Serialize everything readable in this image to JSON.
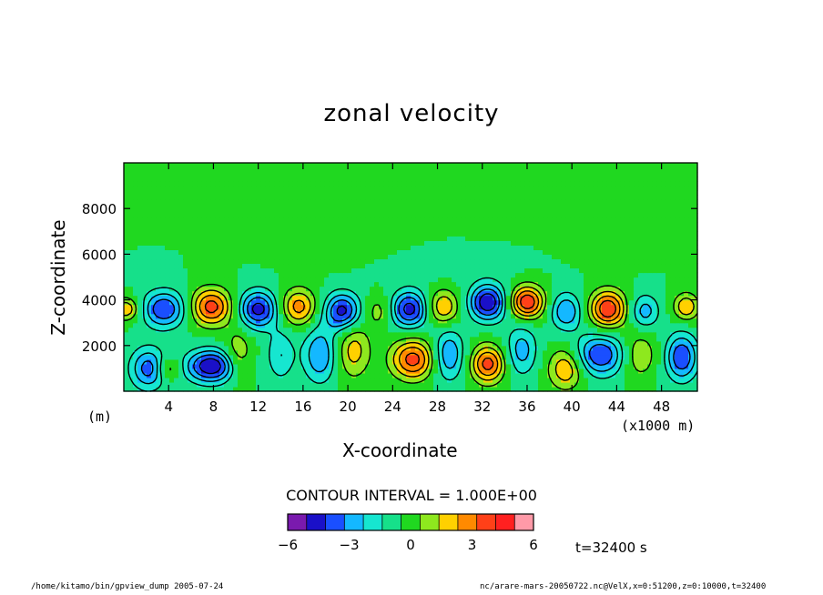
{
  "chart_data": {
    "type": "heatmap",
    "title": "zonal velocity",
    "xlabel": "X-coordinate",
    "ylabel": "Z-coordinate",
    "x_unit_label": "(x1000 m)",
    "y_unit_label": "(m)",
    "xlim": [
      0,
      51.2
    ],
    "ylim": [
      0,
      10000
    ],
    "x_ticks": [
      4,
      8,
      12,
      16,
      20,
      24,
      28,
      32,
      36,
      40,
      44,
      48
    ],
    "x_tick_labels": [
      "4",
      "8",
      "12",
      "16",
      "20",
      "24",
      "28",
      "32",
      "36",
      "40",
      "44",
      "48"
    ],
    "y_ticks": [
      2000,
      4000,
      6000,
      8000
    ],
    "y_tick_labels": [
      "2000",
      "4000",
      "6000",
      "8000"
    ],
    "contour_interval_text": "CONTOUR INTERVAL = 1.000E+00",
    "color_levels": [
      -6,
      -5,
      -4,
      -3,
      -2,
      -1,
      0,
      1,
      2,
      3,
      4,
      5,
      6
    ],
    "colorbar_colors": [
      "#7a1aae",
      "#1a10c8",
      "#1a4fff",
      "#14b8ff",
      "#16e6d0",
      "#16e08a",
      "#20d820",
      "#8ee81e",
      "#ffd000",
      "#ff8a00",
      "#ff4018",
      "#ff2020",
      "#ff9aa8"
    ],
    "colorbar_labels": [
      "-6",
      "-3",
      "0",
      "3",
      "6"
    ],
    "colorbar_label_values": [
      -6,
      -3,
      0,
      3,
      6
    ],
    "annotation_time": "t=32400 s",
    "footer_left": "/home/kitamo/bin/gpview_dump  2005-07-24",
    "footer_right": "nc/arare-mars-20050722.nc@VelX,x=0:51200,z=0:10000,t=32400"
  }
}
